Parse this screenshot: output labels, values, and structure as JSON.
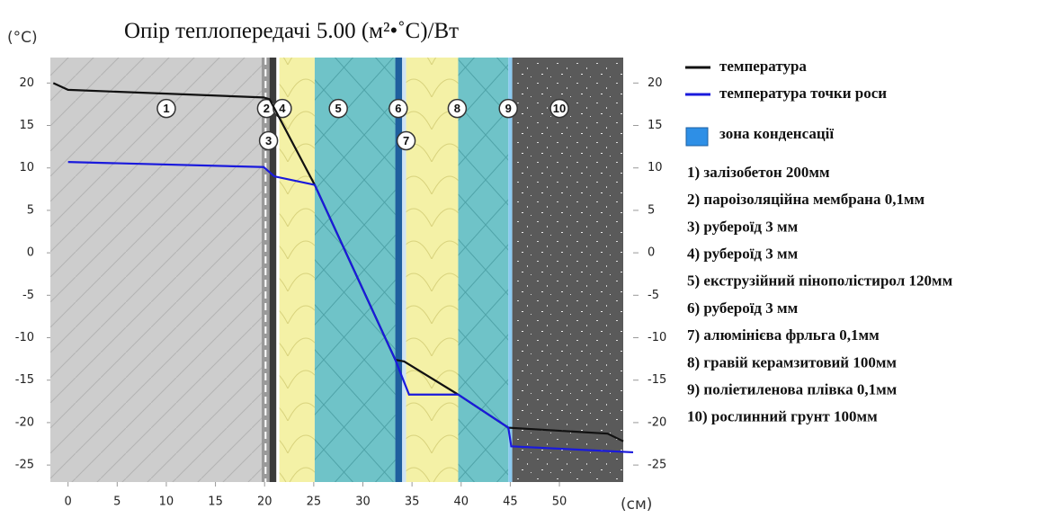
{
  "chart_data": {
    "type": "line",
    "title": "Опір теплопередачі 5.00 (м²•˚С)/Вт",
    "y_label": "(°С)",
    "x_label": "(см)",
    "xlim": [
      -1.8,
      57.5
    ],
    "ylim": [
      -27,
      23
    ],
    "xticks": [
      0,
      5,
      10,
      15,
      20,
      25,
      30,
      35,
      40,
      45,
      50
    ],
    "yticks": [
      20,
      15,
      10,
      5,
      0,
      -5,
      -10,
      -15,
      -20,
      -25
    ],
    "series": [
      {
        "name": "температура",
        "color": "#111111",
        "x": [
          -1.5,
          0,
          19.9,
          20.5,
          25.1,
          33.3,
          34.2,
          39.7,
          44.8,
          54.9,
          56.5
        ],
        "values": [
          20,
          19.2,
          18.3,
          18.1,
          8,
          -12.6,
          -12.8,
          -16.7,
          -20.6,
          -21.3,
          -22.2
        ]
      },
      {
        "name": "температура точки роси",
        "color": "#1a1adc",
        "x": [
          0,
          19.9,
          21,
          25.1,
          33.3,
          34.7,
          39.7,
          44.8,
          45.1,
          57.5
        ],
        "values": [
          10.7,
          10.1,
          9,
          8,
          -12.6,
          -16.7,
          -16.7,
          -20.6,
          -22.8,
          -23.5
        ]
      }
    ],
    "condensation_zone": {
      "label": "зона конденсації",
      "color": "#2e8fe6"
    },
    "layer_markers": [
      "1",
      "2",
      "3",
      "4",
      "5",
      "6",
      "7",
      "8",
      "9",
      "10"
    ],
    "layers": [
      "1) залізобетон 200мм",
      "2) пароізоляційна мембрана 0,1мм",
      "3) руберoїд 3 мм",
      "4) руберoїд 3 мм",
      "5) екструзійний пінополістирол 120мм",
      "6) руберoїд 3 мм",
      "7) алюмінієва фрльга 0,1мм",
      "8) гравій керамзитовий 100мм",
      "9) поліетиленова плівка 0,1мм",
      "10) рослинний грунт 100мм"
    ]
  }
}
